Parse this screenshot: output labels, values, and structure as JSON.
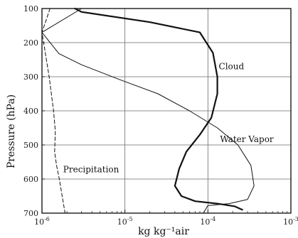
{
  "chart_data": {
    "type": "line",
    "title": "",
    "xlabel": "kg kg⁻¹air",
    "ylabel": "Pressure (hPa)",
    "xscale": "log",
    "xlim": [
      1e-06,
      0.001
    ],
    "ylim": [
      700,
      100
    ],
    "y_inverted": true,
    "grid": true,
    "x_ticks": [
      1e-06,
      1e-05,
      0.0001,
      0.001
    ],
    "x_tick_labels": [
      {
        "base": "10",
        "exp": "-6"
      },
      {
        "base": "10",
        "exp": "-5"
      },
      {
        "base": "10",
        "exp": "-4"
      },
      {
        "base": "10",
        "exp": "-3"
      }
    ],
    "y_ticks": [
      100,
      200,
      300,
      400,
      500,
      600,
      700
    ],
    "y_tick_labels": [
      "100",
      "200",
      "300",
      "400",
      "500",
      "600",
      "700"
    ],
    "series": [
      {
        "name": "Cloud",
        "style": "thick",
        "color": "#111111",
        "points": [
          [
            2.5e-06,
            100
          ],
          [
            3e-06,
            110
          ],
          [
            2e-05,
            140
          ],
          [
            8e-05,
            170
          ],
          [
            0.000115,
            230
          ],
          [
            0.00013,
            300
          ],
          [
            0.00013,
            350
          ],
          [
            0.00011,
            420
          ],
          [
            8e-05,
            470
          ],
          [
            5.5e-05,
            520
          ],
          [
            4.5e-05,
            570
          ],
          [
            4e-05,
            620
          ],
          [
            4.8e-05,
            650
          ],
          [
            7e-05,
            665
          ],
          [
            0.00013,
            672
          ],
          [
            0.00021,
            680
          ],
          [
            0.00026,
            690
          ]
        ]
      },
      {
        "name": "Water Vapor",
        "style": "thin",
        "color": "#111111",
        "points": [
          [
            1e-06,
            170
          ],
          [
            1.6e-06,
            232
          ],
          [
            3e-06,
            265
          ],
          [
            9e-06,
            310
          ],
          [
            2.5e-05,
            350
          ],
          [
            6e-05,
            400
          ],
          [
            0.00013,
            450
          ],
          [
            0.00023,
            500
          ],
          [
            0.00033,
            560
          ],
          [
            0.00036,
            620
          ],
          [
            0.0003,
            660
          ],
          [
            0.00018,
            672
          ],
          [
            0.0001,
            678
          ],
          [
            8.8e-05,
            700
          ]
        ]
      },
      {
        "name": "Precipitation",
        "style": "dashed",
        "color": "#111111",
        "points": [
          [
            1.25e-06,
            100
          ],
          [
            1.12e-06,
            135
          ],
          [
            1e-06,
            170
          ],
          [
            1.08e-06,
            220
          ],
          [
            1.22e-06,
            300
          ],
          [
            1.38e-06,
            400
          ],
          [
            1.45e-06,
            460
          ],
          [
            1.42e-06,
            520
          ],
          [
            1.5e-06,
            560
          ],
          [
            1.62e-06,
            600
          ],
          [
            1.75e-06,
            650
          ],
          [
            1.9e-06,
            700
          ]
        ]
      },
      {
        "name": "",
        "style": "thin",
        "color": "#111111",
        "points": [
          [
            1e-06,
            170
          ],
          [
            3e-06,
            100
          ]
        ]
      }
    ],
    "annotations": [
      {
        "text": "Cloud",
        "x": 0.000135,
        "y": 278
      },
      {
        "text": "Water Vapor",
        "x": 0.00014,
        "y": 492
      },
      {
        "text": "Precipitation",
        "x": 1.8e-06,
        "y": 580
      }
    ]
  }
}
